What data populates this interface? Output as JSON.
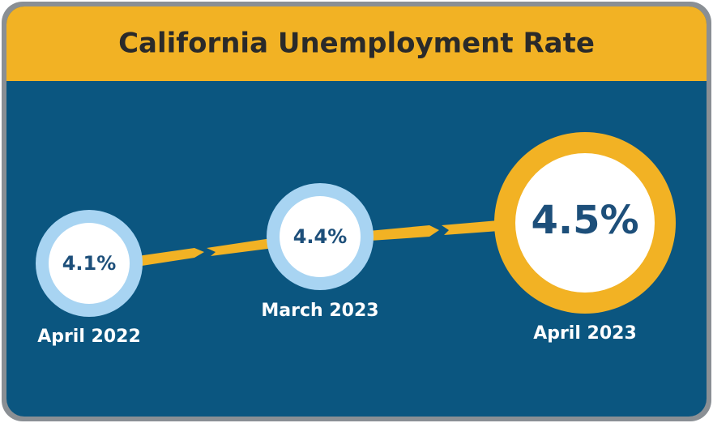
{
  "title": "California Unemployment Rate",
  "items": [
    {
      "date": "April 2022",
      "rate": "4.1%"
    },
    {
      "date": "March 2023",
      "rate": "4.4%"
    },
    {
      "date": "April 2023",
      "rate": "4.5%"
    }
  ]
}
